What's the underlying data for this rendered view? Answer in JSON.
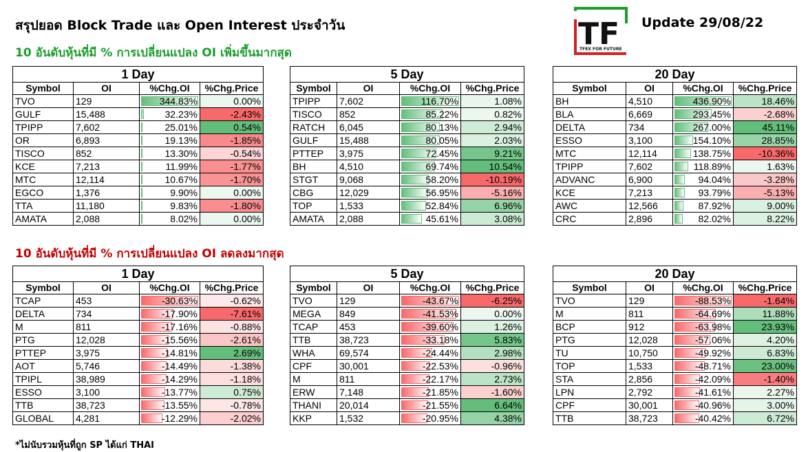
{
  "header": {
    "title": "สรุปยอด Block Trade และ Open Interest ประจำวัน",
    "update": "Update 29/08/22",
    "logo_text": "TF",
    "logo_tagline": "TFEX FOR FUTURE"
  },
  "sections": {
    "increase_title": "10 อันดับหุ้นที่มี % การเปลี่ยนแปลง OI เพิ่มขึ้นมากสุด",
    "decrease_title": "10 อันดับหุ้นที่มี % การเปลี่ยนแปลง OI ลดลงมากสุด"
  },
  "footnote": "*ไม่นับรวมหุ้นที่ถูก SP ได้แก่ THAI",
  "columns": [
    "Symbol",
    "OI",
    "%Chg.OI",
    "%Chg.Price"
  ],
  "colors": {
    "pos_bar": "#63be7b",
    "neg_bar": "#f8696b",
    "pos_cell": "#63be7b",
    "neg_cell": "#f8696b"
  },
  "increase": [
    {
      "period": "1 Day",
      "rows": [
        {
          "symbol": "TVO",
          "oi": "129",
          "chg_oi": "344.83%",
          "chg_price": "0.00%",
          "oi_v": 344.83,
          "price_v": 0.0
        },
        {
          "symbol": "GULF",
          "oi": "15,488",
          "chg_oi": "32.23%",
          "chg_price": "-2.43%",
          "oi_v": 32.23,
          "price_v": -2.43
        },
        {
          "symbol": "TPIPP",
          "oi": "7,602",
          "chg_oi": "25.01%",
          "chg_price": "0.54%",
          "oi_v": 25.01,
          "price_v": 0.54
        },
        {
          "symbol": "OR",
          "oi": "6,893",
          "chg_oi": "19.13%",
          "chg_price": "-1.85%",
          "oi_v": 19.13,
          "price_v": -1.85
        },
        {
          "symbol": "TISCO",
          "oi": "852",
          "chg_oi": "13.30%",
          "chg_price": "-0.54%",
          "oi_v": 13.3,
          "price_v": -0.54
        },
        {
          "symbol": "KCE",
          "oi": "7,213",
          "chg_oi": "11.99%",
          "chg_price": "-1.77%",
          "oi_v": 11.99,
          "price_v": -1.77
        },
        {
          "symbol": "MTC",
          "oi": "12,114",
          "chg_oi": "10.67%",
          "chg_price": "-1.70%",
          "oi_v": 10.67,
          "price_v": -1.7
        },
        {
          "symbol": "EGCO",
          "oi": "1,376",
          "chg_oi": "9.90%",
          "chg_price": "0.00%",
          "oi_v": 9.9,
          "price_v": 0.0
        },
        {
          "symbol": "TTA",
          "oi": "11,180",
          "chg_oi": "9.83%",
          "chg_price": "-1.80%",
          "oi_v": 9.83,
          "price_v": -1.8
        },
        {
          "symbol": "AMATA",
          "oi": "2,088",
          "chg_oi": "8.02%",
          "chg_price": "0.00%",
          "oi_v": 8.02,
          "price_v": 0.0
        }
      ]
    },
    {
      "period": "5 Day",
      "rows": [
        {
          "symbol": "TPIPP",
          "oi": "7,602",
          "chg_oi": "116.70%",
          "chg_price": "1.08%",
          "oi_v": 116.7,
          "price_v": 1.08
        },
        {
          "symbol": "TISCO",
          "oi": "852",
          "chg_oi": "85.22%",
          "chg_price": "0.82%",
          "oi_v": 85.22,
          "price_v": 0.82
        },
        {
          "symbol": "RATCH",
          "oi": "6,045",
          "chg_oi": "80.13%",
          "chg_price": "2.94%",
          "oi_v": 80.13,
          "price_v": 2.94
        },
        {
          "symbol": "GULF",
          "oi": "15,488",
          "chg_oi": "80.05%",
          "chg_price": "2.03%",
          "oi_v": 80.05,
          "price_v": 2.03
        },
        {
          "symbol": "PTTEP",
          "oi": "3,975",
          "chg_oi": "72.45%",
          "chg_price": "9.21%",
          "oi_v": 72.45,
          "price_v": 9.21
        },
        {
          "symbol": "BH",
          "oi": "4,510",
          "chg_oi": "69.74%",
          "chg_price": "10.54%",
          "oi_v": 69.74,
          "price_v": 10.54
        },
        {
          "symbol": "STGT",
          "oi": "9,068",
          "chg_oi": "58.20%",
          "chg_price": "-10.19%",
          "oi_v": 58.2,
          "price_v": -10.19
        },
        {
          "symbol": "CBG",
          "oi": "12,029",
          "chg_oi": "56.95%",
          "chg_price": "-5.16%",
          "oi_v": 56.95,
          "price_v": -5.16
        },
        {
          "symbol": "TOP",
          "oi": "1,533",
          "chg_oi": "52.84%",
          "chg_price": "6.96%",
          "oi_v": 52.84,
          "price_v": 6.96
        },
        {
          "symbol": "AMATA",
          "oi": "2,088",
          "chg_oi": "45.61%",
          "chg_price": "3.08%",
          "oi_v": 45.61,
          "price_v": 3.08
        }
      ]
    },
    {
      "period": "20 Day",
      "rows": [
        {
          "symbol": "BH",
          "oi": "4,510",
          "chg_oi": "436.90%",
          "chg_price": "18.46%",
          "oi_v": 436.9,
          "price_v": 18.46
        },
        {
          "symbol": "BLA",
          "oi": "6,669",
          "chg_oi": "293.45%",
          "chg_price": "-2.68%",
          "oi_v": 293.45,
          "price_v": -2.68
        },
        {
          "symbol": "DELTA",
          "oi": "734",
          "chg_oi": "267.00%",
          "chg_price": "45.11%",
          "oi_v": 267.0,
          "price_v": 45.11
        },
        {
          "symbol": "ESSO",
          "oi": "3,100",
          "chg_oi": "154.10%",
          "chg_price": "28.85%",
          "oi_v": 154.1,
          "price_v": 28.85
        },
        {
          "symbol": "MTC",
          "oi": "12,114",
          "chg_oi": "138.75%",
          "chg_price": "-10.36%",
          "oi_v": 138.75,
          "price_v": -10.36
        },
        {
          "symbol": "TPIPP",
          "oi": "7,602",
          "chg_oi": "118.89%",
          "chg_price": "1.63%",
          "oi_v": 118.89,
          "price_v": 1.63
        },
        {
          "symbol": "ADVANC",
          "oi": "6,900",
          "chg_oi": "94.04%",
          "chg_price": "-3.28%",
          "oi_v": 94.04,
          "price_v": -3.28
        },
        {
          "symbol": "KCE",
          "oi": "7,213",
          "chg_oi": "93.79%",
          "chg_price": "-5.13%",
          "oi_v": 93.79,
          "price_v": -5.13
        },
        {
          "symbol": "AWC",
          "oi": "12,566",
          "chg_oi": "87.92%",
          "chg_price": "9.00%",
          "oi_v": 87.92,
          "price_v": 9.0
        },
        {
          "symbol": "CRC",
          "oi": "2,896",
          "chg_oi": "82.02%",
          "chg_price": "8.22%",
          "oi_v": 82.02,
          "price_v": 8.22
        }
      ]
    }
  ],
  "decrease": [
    {
      "period": "1 Day",
      "rows": [
        {
          "symbol": "TCAP",
          "oi": "453",
          "chg_oi": "-30.63%",
          "chg_price": "-0.62%",
          "oi_v": -30.63,
          "price_v": -0.62
        },
        {
          "symbol": "DELTA",
          "oi": "734",
          "chg_oi": "-17.90%",
          "chg_price": "-7.61%",
          "oi_v": -17.9,
          "price_v": -7.61
        },
        {
          "symbol": "M",
          "oi": "811",
          "chg_oi": "-17.16%",
          "chg_price": "-0.88%",
          "oi_v": -17.16,
          "price_v": -0.88
        },
        {
          "symbol": "PTG",
          "oi": "12,028",
          "chg_oi": "-15.56%",
          "chg_price": "-2.61%",
          "oi_v": -15.56,
          "price_v": -2.61
        },
        {
          "symbol": "PTTEP",
          "oi": "3,975",
          "chg_oi": "-14.81%",
          "chg_price": "2.69%",
          "oi_v": -14.81,
          "price_v": 2.69
        },
        {
          "symbol": "AOT",
          "oi": "5,746",
          "chg_oi": "-14.49%",
          "chg_price": "-1.38%",
          "oi_v": -14.49,
          "price_v": -1.38
        },
        {
          "symbol": "TPIPL",
          "oi": "38,989",
          "chg_oi": "-14.29%",
          "chg_price": "-1.18%",
          "oi_v": -14.29,
          "price_v": -1.18
        },
        {
          "symbol": "ESSO",
          "oi": "3,100",
          "chg_oi": "-13.77%",
          "chg_price": "0.75%",
          "oi_v": -13.77,
          "price_v": 0.75
        },
        {
          "symbol": "TTB",
          "oi": "38,723",
          "chg_oi": "-13.55%",
          "chg_price": "-0.78%",
          "oi_v": -13.55,
          "price_v": -0.78
        },
        {
          "symbol": "GLOBAL",
          "oi": "4,281",
          "chg_oi": "-12.29%",
          "chg_price": "-2.02%",
          "oi_v": -12.29,
          "price_v": -2.02
        }
      ]
    },
    {
      "period": "5 Day",
      "rows": [
        {
          "symbol": "TVO",
          "oi": "129",
          "chg_oi": "-43.67%",
          "chg_price": "-6.25%",
          "oi_v": -43.67,
          "price_v": -6.25
        },
        {
          "symbol": "MEGA",
          "oi": "849",
          "chg_oi": "-41.53%",
          "chg_price": "0.00%",
          "oi_v": -41.53,
          "price_v": 0.0
        },
        {
          "symbol": "TCAP",
          "oi": "453",
          "chg_oi": "-39.60%",
          "chg_price": "1.26%",
          "oi_v": -39.6,
          "price_v": 1.26
        },
        {
          "symbol": "TTB",
          "oi": "38,723",
          "chg_oi": "-33.18%",
          "chg_price": "5.83%",
          "oi_v": -33.18,
          "price_v": 5.83
        },
        {
          "symbol": "WHA",
          "oi": "69,574",
          "chg_oi": "-24.44%",
          "chg_price": "2.98%",
          "oi_v": -24.44,
          "price_v": 2.98
        },
        {
          "symbol": "CPF",
          "oi": "30,001",
          "chg_oi": "-22.53%",
          "chg_price": "-0.96%",
          "oi_v": -22.53,
          "price_v": -0.96
        },
        {
          "symbol": "M",
          "oi": "811",
          "chg_oi": "-22.17%",
          "chg_price": "2.73%",
          "oi_v": -22.17,
          "price_v": 2.73
        },
        {
          "symbol": "ERW",
          "oi": "7,148",
          "chg_oi": "-21.85%",
          "chg_price": "-1.60%",
          "oi_v": -21.85,
          "price_v": -1.6
        },
        {
          "symbol": "THANI",
          "oi": "20,014",
          "chg_oi": "-21.55%",
          "chg_price": "6.64%",
          "oi_v": -21.55,
          "price_v": 6.64
        },
        {
          "symbol": "KKP",
          "oi": "1,532",
          "chg_oi": "-20.95%",
          "chg_price": "4.38%",
          "oi_v": -20.95,
          "price_v": 4.38
        }
      ]
    },
    {
      "period": "20 Day",
      "rows": [
        {
          "symbol": "TVO",
          "oi": "129",
          "chg_oi": "-88.53%",
          "chg_price": "-1.64%",
          "oi_v": -88.53,
          "price_v": -1.64
        },
        {
          "symbol": "M",
          "oi": "811",
          "chg_oi": "-64.69%",
          "chg_price": "11.88%",
          "oi_v": -64.69,
          "price_v": 11.88
        },
        {
          "symbol": "BCP",
          "oi": "912",
          "chg_oi": "-63.98%",
          "chg_price": "23.93%",
          "oi_v": -63.98,
          "price_v": 23.93
        },
        {
          "symbol": "PTG",
          "oi": "12,028",
          "chg_oi": "-57.06%",
          "chg_price": "4.20%",
          "oi_v": -57.06,
          "price_v": 4.2
        },
        {
          "symbol": "TU",
          "oi": "10,750",
          "chg_oi": "-49.92%",
          "chg_price": "6.83%",
          "oi_v": -49.92,
          "price_v": 6.83
        },
        {
          "symbol": "TOP",
          "oi": "1,533",
          "chg_oi": "-48.71%",
          "chg_price": "23.00%",
          "oi_v": -48.71,
          "price_v": 23.0
        },
        {
          "symbol": "STA",
          "oi": "2,856",
          "chg_oi": "-42.09%",
          "chg_price": "-1.40%",
          "oi_v": -42.09,
          "price_v": -1.4
        },
        {
          "symbol": "LPN",
          "oi": "2,792",
          "chg_oi": "-41.61%",
          "chg_price": "2.27%",
          "oi_v": -41.61,
          "price_v": 2.27
        },
        {
          "symbol": "CPF",
          "oi": "30,001",
          "chg_oi": "-40.96%",
          "chg_price": "3.00%",
          "oi_v": -40.96,
          "price_v": 3.0
        },
        {
          "symbol": "TTB",
          "oi": "38,723",
          "chg_oi": "-40.42%",
          "chg_price": "6.72%",
          "oi_v": -40.42,
          "price_v": 6.72
        }
      ]
    }
  ]
}
